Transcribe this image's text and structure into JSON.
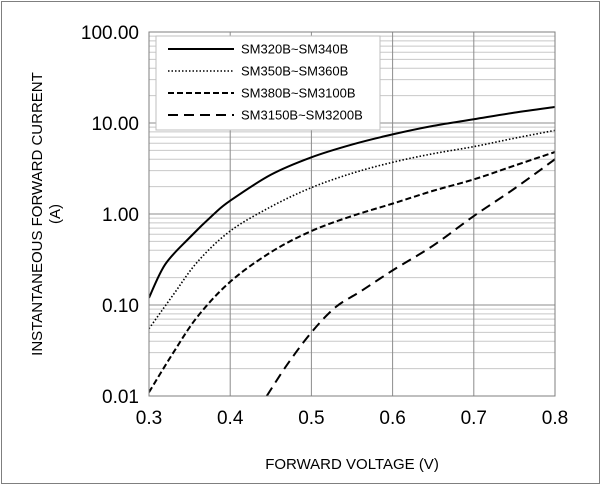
{
  "chart_data": {
    "type": "line",
    "xlabel": "FORWARD VOLTAGE (V)",
    "ylabel_line1": "INSTANTANEOUS FORWARD CURRENT",
    "ylabel_line2": "(A)",
    "xlim": [
      0.3,
      0.8
    ],
    "ylim": [
      0.01,
      100
    ],
    "y_scale": "log",
    "x_ticks": [
      "0.3",
      "0.4",
      "0.5",
      "0.6",
      "0.7",
      "0.8"
    ],
    "y_ticks": [
      "100.00",
      "10.00",
      "1.00",
      "0.10",
      "0.01"
    ],
    "grid": true,
    "legend_position": "top-left",
    "series": [
      {
        "name": "SM320B~SM340B",
        "style": "solid",
        "color": "#000000",
        "x": [
          0.3,
          0.32,
          0.35,
          0.38,
          0.4,
          0.45,
          0.5,
          0.55,
          0.6,
          0.65,
          0.7,
          0.75,
          0.8
        ],
        "y": [
          0.12,
          0.28,
          0.55,
          1.0,
          1.4,
          2.7,
          4.2,
          5.8,
          7.5,
          9.3,
          11.0,
          13.0,
          15.0
        ]
      },
      {
        "name": "SM350B~SM360B",
        "style": "dotted",
        "color": "#000000",
        "x": [
          0.3,
          0.33,
          0.36,
          0.4,
          0.45,
          0.5,
          0.55,
          0.6,
          0.65,
          0.7,
          0.75,
          0.8
        ],
        "y": [
          0.055,
          0.13,
          0.3,
          0.65,
          1.2,
          1.95,
          2.8,
          3.7,
          4.6,
          5.5,
          6.8,
          8.3
        ]
      },
      {
        "name": "SM380B~SM3100B",
        "style": "dashed",
        "color": "#000000",
        "x": [
          0.3,
          0.33,
          0.36,
          0.4,
          0.45,
          0.5,
          0.55,
          0.6,
          0.65,
          0.7,
          0.75,
          0.8
        ],
        "y": [
          0.011,
          0.03,
          0.075,
          0.18,
          0.38,
          0.65,
          0.95,
          1.3,
          1.8,
          2.4,
          3.4,
          4.8
        ]
      },
      {
        "name": "SM3150B~SM3200B",
        "style": "long-dashed",
        "color": "#000000",
        "x": [
          0.445,
          0.47,
          0.5,
          0.53,
          0.56,
          0.6,
          0.65,
          0.7,
          0.75,
          0.8
        ],
        "y": [
          0.01,
          0.022,
          0.05,
          0.095,
          0.14,
          0.24,
          0.45,
          0.95,
          1.9,
          4.0
        ]
      }
    ]
  }
}
